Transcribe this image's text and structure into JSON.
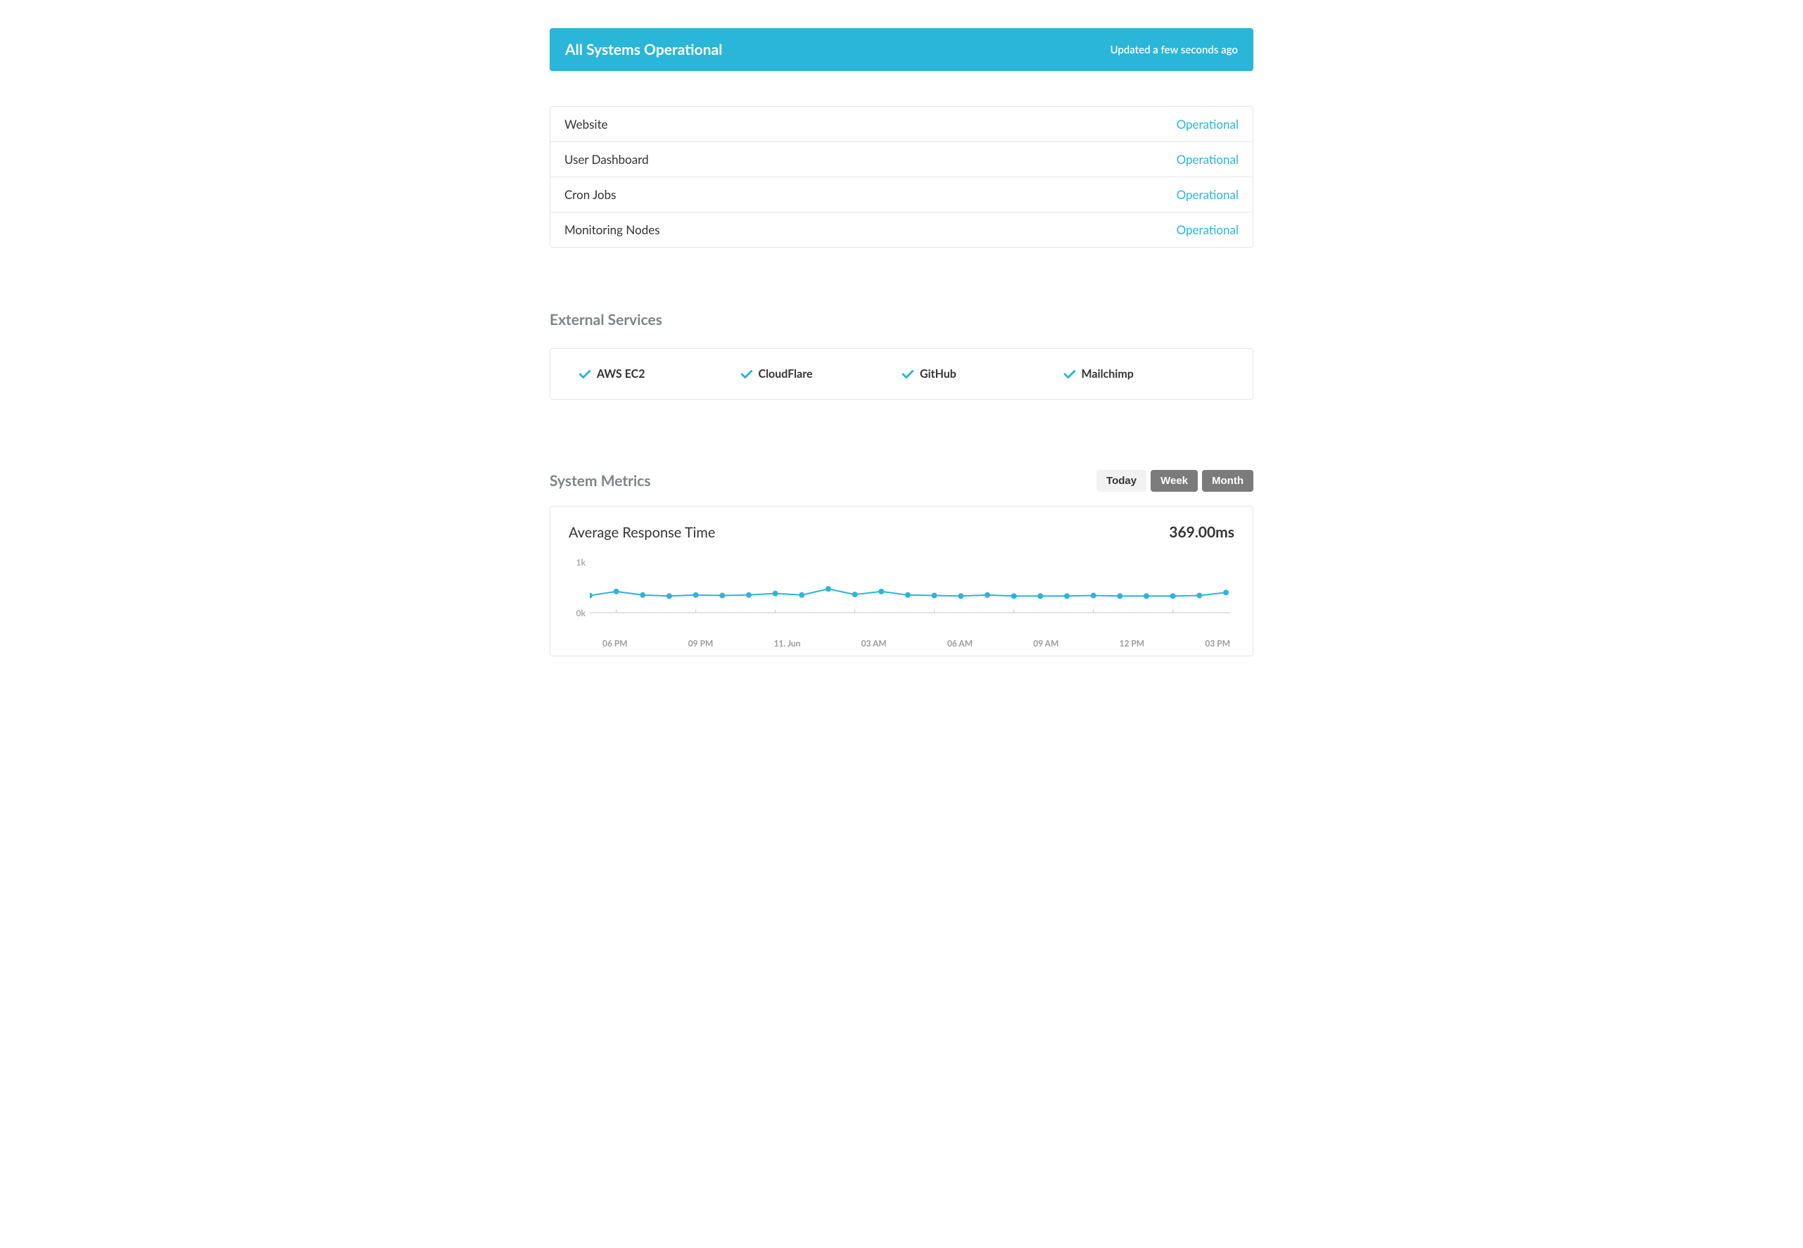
{
  "colors": {
    "accent": "#29b6d8",
    "banner_bg": "#29b6d8",
    "banner_text": "#ffffff",
    "border": "#e6e6e6",
    "text": "#333333",
    "muted_heading": "#7e8487",
    "toggle_inactive_bg": "#7b7b7b",
    "toggle_active_bg": "#f2f2f2",
    "axis_label": "#9a9a9a",
    "chart_line": "#29b6d8",
    "chart_marker": "#29b6d8",
    "chart_axis": "#c9c9c9"
  },
  "banner": {
    "title": "All Systems Operational",
    "updated": "Updated a few seconds ago"
  },
  "components": [
    {
      "name": "Website",
      "status": "Operational"
    },
    {
      "name": "User Dashboard",
      "status": "Operational"
    },
    {
      "name": "Cron Jobs",
      "status": "Operational"
    },
    {
      "name": "Monitoring Nodes",
      "status": "Operational"
    }
  ],
  "external": {
    "title": "External Services",
    "items": [
      {
        "name": "AWS EC2"
      },
      {
        "name": "CloudFlare"
      },
      {
        "name": "GitHub"
      },
      {
        "name": "Mailchimp"
      }
    ]
  },
  "metrics": {
    "title": "System Metrics",
    "toggles": [
      {
        "label": "Today",
        "active": true
      },
      {
        "label": "Week",
        "active": false
      },
      {
        "label": "Month",
        "active": false
      }
    ],
    "chart": {
      "type": "line",
      "title": "Average Response Time",
      "value_label": "369.00ms",
      "ylim": [
        0,
        1000
      ],
      "yticks": [
        {
          "value": 0,
          "label": "0k"
        },
        {
          "value": 1000,
          "label": "1k"
        }
      ],
      "xticks": [
        "06 PM",
        "09 PM",
        "11. Jun",
        "03 AM",
        "06 AM",
        "09 AM",
        "12 PM",
        "03 PM"
      ],
      "x_tick_indices": [
        1,
        4,
        7,
        10,
        13,
        16,
        19,
        22
      ],
      "line_width": 2,
      "marker_radius": 4,
      "marker_style": "circle",
      "background_color": "#ffffff",
      "series": {
        "values": [
          340,
          420,
          350,
          330,
          350,
          340,
          350,
          380,
          350,
          470,
          360,
          420,
          350,
          340,
          330,
          350,
          330,
          330,
          330,
          340,
          330,
          330,
          330,
          340,
          400
        ],
        "color": "#29b6d8"
      }
    }
  }
}
